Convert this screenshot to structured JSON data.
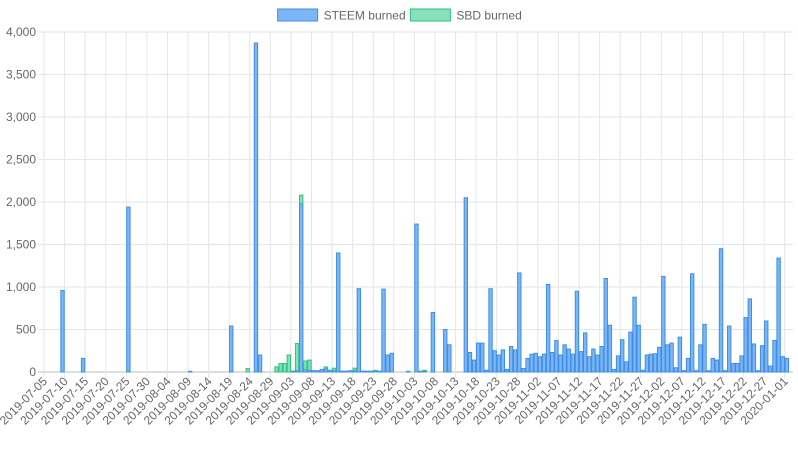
{
  "chart_data": {
    "type": "bar",
    "stacked": true,
    "x_start": "2019-07-05",
    "x_end": "2020-01-03",
    "x_tick_labels": [
      "2019-07-05",
      "2019-07-10",
      "2019-07-15",
      "2019-07-20",
      "2019-07-25",
      "2019-07-30",
      "2019-08-04",
      "2019-08-09",
      "2019-08-14",
      "2019-08-19",
      "2019-08-24",
      "2019-08-29",
      "2019-09-03",
      "2019-09-08",
      "2019-09-13",
      "2019-09-18",
      "2019-09-23",
      "2019-09-28",
      "2019-10-03",
      "2019-10-08",
      "2019-10-13",
      "2019-10-18",
      "2019-10-23",
      "2019-10-28",
      "2019-11-02",
      "2019-11-07",
      "2019-11-12",
      "2019-11-17",
      "2019-11-22",
      "2019-11-27",
      "2019-12-02",
      "2019-12-07",
      "2019-12-12",
      "2019-12-17",
      "2019-12-22",
      "2019-12-27",
      "2020-01-01"
    ],
    "y_ticks": [
      "0",
      "500",
      "1,000",
      "1,500",
      "2,000",
      "2,500",
      "3,000",
      "3,500",
      "4,000"
    ],
    "ylim": [
      0,
      4000
    ],
    "grid": true,
    "legend_position": "top-center",
    "series": [
      {
        "name": "STEEM burned",
        "color": "#3d8ee6",
        "fill": "#7db6f5",
        "points": [
          {
            "x": "2019-07-09",
            "y": 960
          },
          {
            "x": "2019-07-14",
            "y": 160
          },
          {
            "x": "2019-07-25",
            "y": 1940
          },
          {
            "x": "2019-08-09",
            "y": 8
          },
          {
            "x": "2019-08-19",
            "y": 540
          },
          {
            "x": "2019-08-25",
            "y": 3870
          },
          {
            "x": "2019-08-26",
            "y": 200
          },
          {
            "x": "2019-09-03",
            "y": 10
          },
          {
            "x": "2019-09-04",
            "y": 15
          },
          {
            "x": "2019-09-05",
            "y": 1980
          },
          {
            "x": "2019-09-06",
            "y": 30
          },
          {
            "x": "2019-09-07",
            "y": 20
          },
          {
            "x": "2019-09-08",
            "y": 15
          },
          {
            "x": "2019-09-09",
            "y": 15
          },
          {
            "x": "2019-09-10",
            "y": 30
          },
          {
            "x": "2019-09-11",
            "y": 40
          },
          {
            "x": "2019-09-12",
            "y": 20
          },
          {
            "x": "2019-09-13",
            "y": 15
          },
          {
            "x": "2019-09-14",
            "y": 1400
          },
          {
            "x": "2019-09-15",
            "y": 10
          },
          {
            "x": "2019-09-16",
            "y": 10
          },
          {
            "x": "2019-09-17",
            "y": 15
          },
          {
            "x": "2019-09-18",
            "y": 15
          },
          {
            "x": "2019-09-19",
            "y": 980
          },
          {
            "x": "2019-09-20",
            "y": 10
          },
          {
            "x": "2019-09-21",
            "y": 10
          },
          {
            "x": "2019-09-22",
            "y": 10
          },
          {
            "x": "2019-09-23",
            "y": 10
          },
          {
            "x": "2019-09-24",
            "y": 10
          },
          {
            "x": "2019-09-25",
            "y": 975
          },
          {
            "x": "2019-09-26",
            "y": 200
          },
          {
            "x": "2019-09-27",
            "y": 220
          },
          {
            "x": "2019-10-01",
            "y": 8
          },
          {
            "x": "2019-10-03",
            "y": 1740
          },
          {
            "x": "2019-10-04",
            "y": 10
          },
          {
            "x": "2019-10-05",
            "y": 10
          },
          {
            "x": "2019-10-07",
            "y": 700
          },
          {
            "x": "2019-10-10",
            "y": 500
          },
          {
            "x": "2019-10-11",
            "y": 320
          },
          {
            "x": "2019-10-15",
            "y": 2050
          },
          {
            "x": "2019-10-16",
            "y": 230
          },
          {
            "x": "2019-10-17",
            "y": 140
          },
          {
            "x": "2019-10-18",
            "y": 340
          },
          {
            "x": "2019-10-19",
            "y": 340
          },
          {
            "x": "2019-10-20",
            "y": 20
          },
          {
            "x": "2019-10-21",
            "y": 980
          },
          {
            "x": "2019-10-22",
            "y": 250
          },
          {
            "x": "2019-10-23",
            "y": 200
          },
          {
            "x": "2019-10-24",
            "y": 260
          },
          {
            "x": "2019-10-25",
            "y": 30
          },
          {
            "x": "2019-10-26",
            "y": 300
          },
          {
            "x": "2019-10-27",
            "y": 260
          },
          {
            "x": "2019-10-28",
            "y": 1165
          },
          {
            "x": "2019-10-29",
            "y": 40
          },
          {
            "x": "2019-10-30",
            "y": 160
          },
          {
            "x": "2019-10-31",
            "y": 210
          },
          {
            "x": "2019-11-01",
            "y": 220
          },
          {
            "x": "2019-11-02",
            "y": 180
          },
          {
            "x": "2019-11-03",
            "y": 210
          },
          {
            "x": "2019-11-04",
            "y": 1030
          },
          {
            "x": "2019-11-05",
            "y": 230
          },
          {
            "x": "2019-11-06",
            "y": 370
          },
          {
            "x": "2019-11-07",
            "y": 200
          },
          {
            "x": "2019-11-08",
            "y": 320
          },
          {
            "x": "2019-11-09",
            "y": 270
          },
          {
            "x": "2019-11-10",
            "y": 210
          },
          {
            "x": "2019-11-11",
            "y": 950
          },
          {
            "x": "2019-11-12",
            "y": 240
          },
          {
            "x": "2019-11-13",
            "y": 460
          },
          {
            "x": "2019-11-14",
            "y": 180
          },
          {
            "x": "2019-11-15",
            "y": 270
          },
          {
            "x": "2019-11-16",
            "y": 200
          },
          {
            "x": "2019-11-17",
            "y": 300
          },
          {
            "x": "2019-11-18",
            "y": 1100
          },
          {
            "x": "2019-11-19",
            "y": 550
          },
          {
            "x": "2019-11-20",
            "y": 30
          },
          {
            "x": "2019-11-21",
            "y": 190
          },
          {
            "x": "2019-11-22",
            "y": 380
          },
          {
            "x": "2019-11-23",
            "y": 120
          },
          {
            "x": "2019-11-24",
            "y": 470
          },
          {
            "x": "2019-11-25",
            "y": 880
          },
          {
            "x": "2019-11-26",
            "y": 550
          },
          {
            "x": "2019-11-27",
            "y": 20
          },
          {
            "x": "2019-11-28",
            "y": 200
          },
          {
            "x": "2019-11-29",
            "y": 210
          },
          {
            "x": "2019-11-30",
            "y": 215
          },
          {
            "x": "2019-12-01",
            "y": 290
          },
          {
            "x": "2019-12-02",
            "y": 1125
          },
          {
            "x": "2019-12-03",
            "y": 320
          },
          {
            "x": "2019-12-04",
            "y": 340
          },
          {
            "x": "2019-12-05",
            "y": 50
          },
          {
            "x": "2019-12-06",
            "y": 410
          },
          {
            "x": "2019-12-07",
            "y": 15
          },
          {
            "x": "2019-12-08",
            "y": 160
          },
          {
            "x": "2019-12-09",
            "y": 1155
          },
          {
            "x": "2019-12-10",
            "y": 15
          },
          {
            "x": "2019-12-11",
            "y": 320
          },
          {
            "x": "2019-12-12",
            "y": 560
          },
          {
            "x": "2019-12-13",
            "y": 15
          },
          {
            "x": "2019-12-14",
            "y": 160
          },
          {
            "x": "2019-12-15",
            "y": 140
          },
          {
            "x": "2019-12-16",
            "y": 1450
          },
          {
            "x": "2019-12-17",
            "y": 15
          },
          {
            "x": "2019-12-18",
            "y": 540
          },
          {
            "x": "2019-12-19",
            "y": 100
          },
          {
            "x": "2019-12-20",
            "y": 100
          },
          {
            "x": "2019-12-21",
            "y": 190
          },
          {
            "x": "2019-12-22",
            "y": 640
          },
          {
            "x": "2019-12-23",
            "y": 860
          },
          {
            "x": "2019-12-24",
            "y": 330
          },
          {
            "x": "2019-12-25",
            "y": 15
          },
          {
            "x": "2019-12-26",
            "y": 310
          },
          {
            "x": "2019-12-27",
            "y": 600
          },
          {
            "x": "2019-12-28",
            "y": 70
          },
          {
            "x": "2019-12-29",
            "y": 370
          },
          {
            "x": "2019-12-30",
            "y": 1340
          },
          {
            "x": "2019-12-31",
            "y": 180
          },
          {
            "x": "2020-01-01",
            "y": 160
          }
        ]
      },
      {
        "name": "SBD burned",
        "color": "#2ec27e",
        "fill": "#85e0bc",
        "points": [
          {
            "x": "2019-08-23",
            "y": 40
          },
          {
            "x": "2019-08-30",
            "y": 60
          },
          {
            "x": "2019-08-31",
            "y": 100
          },
          {
            "x": "2019-09-01",
            "y": 100
          },
          {
            "x": "2019-09-02",
            "y": 200
          },
          {
            "x": "2019-09-04",
            "y": 320
          },
          {
            "x": "2019-09-05",
            "y": 100
          },
          {
            "x": "2019-09-06",
            "y": 100
          },
          {
            "x": "2019-09-07",
            "y": 120
          },
          {
            "x": "2019-09-11",
            "y": 20
          },
          {
            "x": "2019-09-13",
            "y": 30
          },
          {
            "x": "2019-09-18",
            "y": 30
          },
          {
            "x": "2019-09-23",
            "y": 10
          },
          {
            "x": "2019-10-05",
            "y": 10
          }
        ]
      }
    ]
  }
}
